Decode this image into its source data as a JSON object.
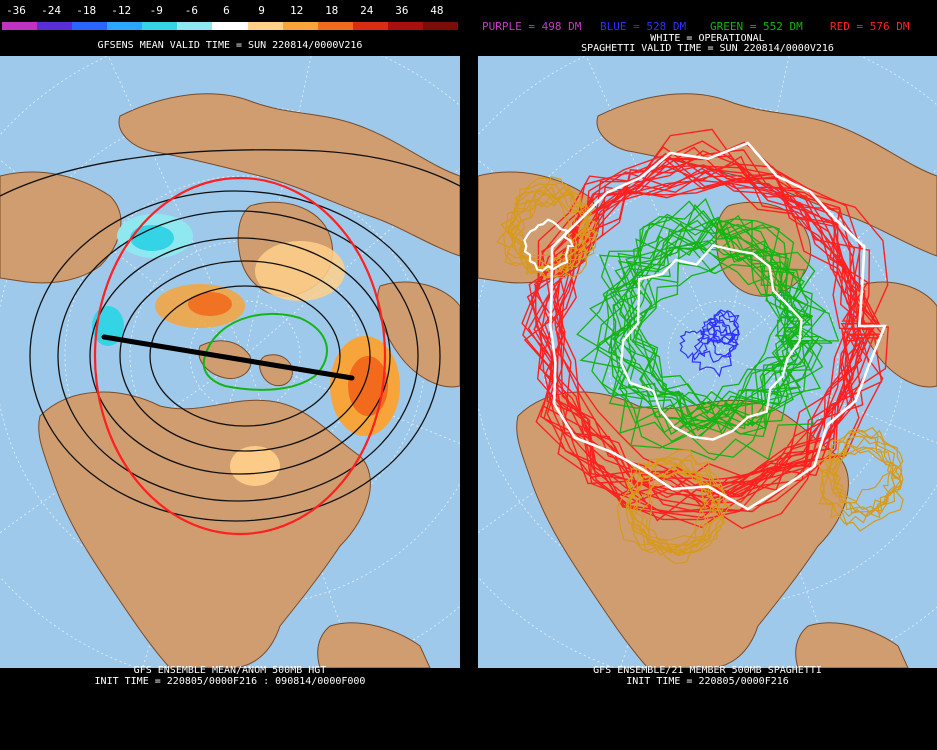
{
  "left_panel": {
    "legend_values": [
      "-36",
      "-24",
      "-18",
      "-12",
      "-9",
      "-6",
      "6",
      "9",
      "12",
      "18",
      "24",
      "36",
      "48"
    ],
    "legend_colors": [
      "#c232c2",
      "#5a2ed6",
      "#2a64ff",
      "#2aa6ff",
      "#34d4e6",
      "#8fe8f0",
      "#ffffff",
      "#ffd08a",
      "#f7a53b",
      "#f26b1d",
      "#d92c12",
      "#a81010",
      "#7a0c0c"
    ],
    "title": "GFSENS MEAN VALID TIME = SUN 220814/0000V216",
    "footer_line1": "GFS ENSEMBLE MEAN/ANOM 500MB HGT",
    "footer_line2": "INIT TIME = 220805/0000F216 : 090814/0000F000"
  },
  "right_panel": {
    "legend": {
      "purple": "PURPLE = 498 DM",
      "blue": "BLUE = 528 DM",
      "green": "GREEN = 552 DM",
      "red": "RED = 576 DM",
      "white": "WHITE = OPERATIONAL"
    },
    "title": "SPAGHETTI VALID TIME = SUN 220814/0000V216",
    "footer_line1": "GFS ENSEMBLE/21 MEMBER 500MB SPAGHETTI",
    "footer_line2": "INIT TIME = 220805/0000F216"
  },
  "colors": {
    "ocean": "#9fc9ea",
    "land": "#cf9d70",
    "border": "#7a4b2a",
    "purple": "#c23cc2",
    "blue": "#3030ff",
    "green": "#14b414",
    "red": "#ff2020",
    "white": "#ffffff",
    "gold": "#d79a1c"
  }
}
